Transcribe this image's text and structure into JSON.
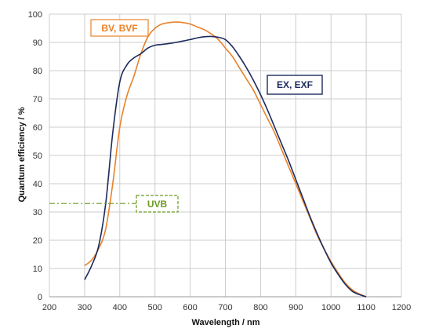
{
  "chart_data": {
    "type": "line",
    "xlabel": "Wavelength / nm",
    "ylabel": "Quantum efficiency / %",
    "xlim": [
      200,
      1200
    ],
    "ylim": [
      0,
      100
    ],
    "xticks": [
      200,
      300,
      400,
      500,
      600,
      700,
      800,
      900,
      1000,
      1100,
      1200
    ],
    "yticks": [
      0,
      10,
      20,
      30,
      40,
      50,
      60,
      70,
      80,
      90,
      100
    ],
    "grid": true,
    "series": [
      {
        "name": "BV, BVF",
        "color": "#e8822a",
        "points": [
          [
            300,
            11
          ],
          [
            320,
            13
          ],
          [
            340,
            17
          ],
          [
            360,
            24
          ],
          [
            380,
            40
          ],
          [
            400,
            60
          ],
          [
            420,
            71
          ],
          [
            440,
            78
          ],
          [
            460,
            86
          ],
          [
            480,
            92
          ],
          [
            500,
            95
          ],
          [
            520,
            96.5
          ],
          [
            540,
            97
          ],
          [
            560,
            97.2
          ],
          [
            580,
            97
          ],
          [
            600,
            96.5
          ],
          [
            620,
            95.5
          ],
          [
            640,
            94.5
          ],
          [
            660,
            93
          ],
          [
            680,
            91
          ],
          [
            700,
            88
          ],
          [
            720,
            85
          ],
          [
            740,
            81
          ],
          [
            760,
            77
          ],
          [
            780,
            73
          ],
          [
            800,
            68
          ],
          [
            820,
            63
          ],
          [
            840,
            58
          ],
          [
            860,
            52
          ],
          [
            880,
            46
          ],
          [
            900,
            40
          ],
          [
            920,
            34
          ],
          [
            940,
            28
          ],
          [
            960,
            22
          ],
          [
            980,
            17
          ],
          [
            1000,
            12.5
          ],
          [
            1020,
            8.5
          ],
          [
            1040,
            5
          ],
          [
            1060,
            2.5
          ],
          [
            1080,
            1
          ],
          [
            1100,
            0
          ]
        ]
      },
      {
        "name": "EX, EXF",
        "color": "#1c2a5e",
        "points": [
          [
            300,
            6
          ],
          [
            320,
            11
          ],
          [
            340,
            18
          ],
          [
            360,
            33
          ],
          [
            380,
            58
          ],
          [
            400,
            76
          ],
          [
            420,
            82
          ],
          [
            440,
            84.5
          ],
          [
            460,
            86
          ],
          [
            480,
            88
          ],
          [
            500,
            89
          ],
          [
            520,
            89.3
          ],
          [
            540,
            89.6
          ],
          [
            560,
            90
          ],
          [
            580,
            90.5
          ],
          [
            600,
            91
          ],
          [
            620,
            91.6
          ],
          [
            640,
            92
          ],
          [
            660,
            92.1
          ],
          [
            680,
            91.8
          ],
          [
            700,
            91
          ],
          [
            720,
            88.5
          ],
          [
            740,
            85
          ],
          [
            760,
            81
          ],
          [
            780,
            76.5
          ],
          [
            800,
            71.5
          ],
          [
            820,
            66
          ],
          [
            840,
            60
          ],
          [
            860,
            54
          ],
          [
            880,
            48
          ],
          [
            900,
            41.5
          ],
          [
            920,
            35
          ],
          [
            940,
            28.5
          ],
          [
            960,
            22.5
          ],
          [
            980,
            17
          ],
          [
            1000,
            12
          ],
          [
            1020,
            8
          ],
          [
            1040,
            4.5
          ],
          [
            1060,
            2
          ],
          [
            1080,
            0.8
          ],
          [
            1100,
            0
          ]
        ]
      },
      {
        "name": "UVB",
        "color": "#6b9a1f",
        "dashed": true,
        "points": [
          [
            200,
            33
          ],
          [
            450,
            33
          ]
        ]
      }
    ]
  },
  "labels": {
    "bv": {
      "text": "BV, BVF",
      "color": "#e8822a"
    },
    "ex": {
      "text": "EX, EXF",
      "color": "#1c2a5e"
    },
    "uvb": {
      "text": "UVB",
      "color": "#6b9a1f"
    }
  }
}
